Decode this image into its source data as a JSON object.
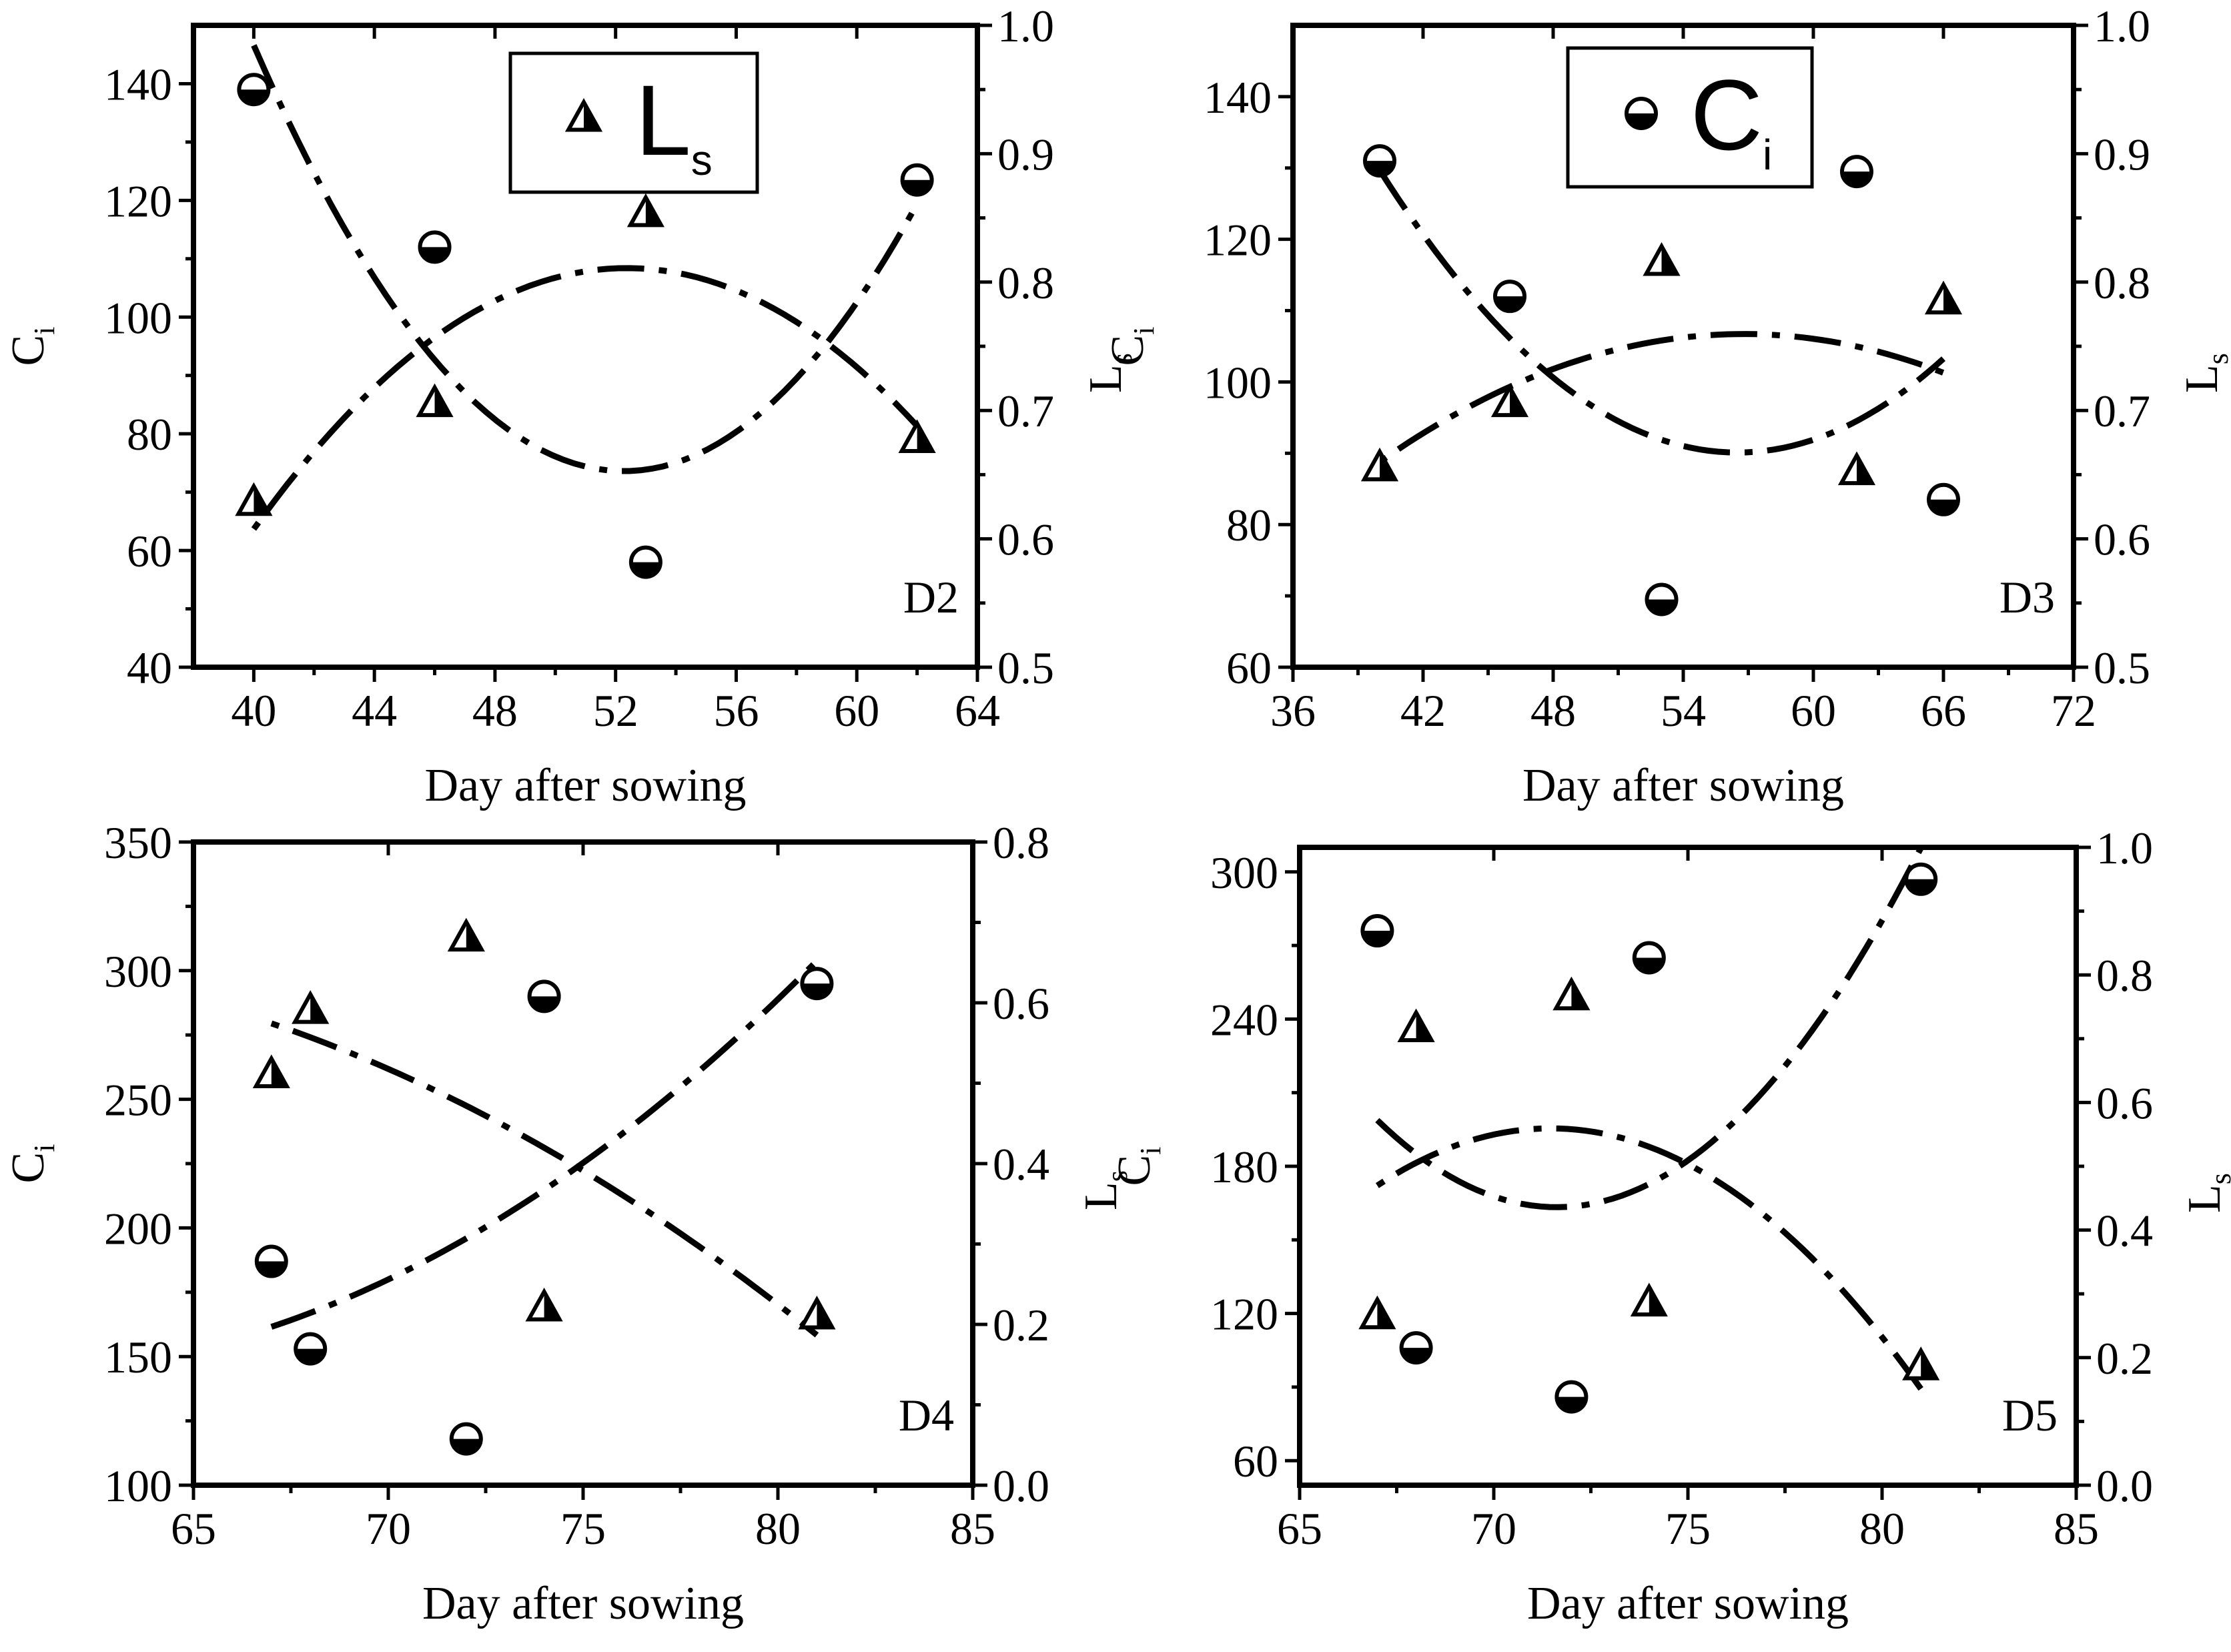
{
  "chart_data": [
    {
      "id": "D2",
      "type": "scatter",
      "panel_label": "D2",
      "xlabel": "Day after sowing",
      "ylabel_left": {
        "main": "C",
        "sub": "i"
      },
      "ylabel_right": {
        "main": "L",
        "sub": "s"
      },
      "xlim": [
        38,
        64
      ],
      "xticks": [
        40,
        44,
        48,
        52,
        56,
        60,
        64
      ],
      "ylim_left": [
        40,
        150
      ],
      "yticks_left": [
        40,
        60,
        80,
        100,
        120,
        140
      ],
      "ylim_right": [
        0.5,
        1.0
      ],
      "yticks_right": [
        "0.5",
        "0.6",
        "0.7",
        "0.8",
        "0.9",
        "1.0"
      ],
      "legend": {
        "position": "top-center",
        "marker": "triangle",
        "label_main": "L",
        "label_sub": "s"
      },
      "series": [
        {
          "name": "Ci",
          "axis": "left",
          "marker": "circle",
          "x": [
            40,
            46,
            53,
            62
          ],
          "y": [
            139,
            112,
            58,
            123.5
          ],
          "fit_x": [
            40,
            62
          ]
        },
        {
          "name": "Ls",
          "axis": "right",
          "marker": "triangle",
          "x": [
            40,
            46,
            53,
            62
          ],
          "y": [
            0.628,
            0.705,
            0.853,
            0.677
          ],
          "fit_x": [
            40,
            62
          ]
        }
      ]
    },
    {
      "id": "D3",
      "type": "scatter",
      "panel_label": "D3",
      "xlabel": "Day after sowing",
      "ylabel_left": {
        "main": "C",
        "sub": "i"
      },
      "ylabel_right": {
        "main": "L",
        "sub": "s"
      },
      "xlim": [
        36,
        72
      ],
      "xticks": [
        36,
        42,
        48,
        54,
        60,
        66,
        72
      ],
      "ylim_left": [
        60,
        150
      ],
      "yticks_left": [
        60,
        80,
        100,
        120,
        140
      ],
      "ylim_right": [
        0.5,
        1.0
      ],
      "yticks_right": [
        "0.5",
        "0.6",
        "0.7",
        "0.8",
        "0.9",
        "1.0"
      ],
      "legend": {
        "position": "top-center",
        "marker": "circle",
        "label_main": "C",
        "label_sub": "i"
      },
      "series": [
        {
          "name": "Ci",
          "axis": "left",
          "marker": "circle",
          "x": [
            40,
            46,
            53,
            62,
            66
          ],
          "y": [
            131,
            112,
            69.5,
            129.5,
            83.5
          ],
          "fit_x": [
            40,
            66
          ]
        },
        {
          "name": "Ls",
          "axis": "right",
          "marker": "triangle",
          "x": [
            40,
            46,
            53,
            62,
            66
          ],
          "y": [
            0.655,
            0.705,
            0.815,
            0.652,
            0.785
          ],
          "fit_x": [
            40,
            66
          ]
        }
      ]
    },
    {
      "id": "D4",
      "type": "scatter",
      "panel_label": "D4",
      "xlabel": "Day after sowing",
      "ylabel_left": {
        "main": "C",
        "sub": "i"
      },
      "ylabel_right": {
        "main": "L",
        "sub": "s"
      },
      "xlim": [
        65,
        85
      ],
      "xticks": [
        65,
        70,
        75,
        80,
        85
      ],
      "ylim_left": [
        100,
        350
      ],
      "yticks_left": [
        100,
        150,
        200,
        250,
        300,
        350
      ],
      "ylim_right": [
        0.0,
        0.8
      ],
      "yticks_right": [
        "0.0",
        "0.2",
        "0.4",
        "0.6",
        "0.8"
      ],
      "series": [
        {
          "name": "Ci",
          "axis": "left",
          "marker": "circle",
          "x": [
            67,
            68,
            72,
            74,
            81
          ],
          "y": [
            187,
            153,
            118,
            290,
            295
          ],
          "fit_x": [
            67,
            81
          ]
        },
        {
          "name": "Ls",
          "axis": "right",
          "marker": "triangle",
          "x": [
            67,
            68,
            72,
            74,
            81
          ],
          "y": [
            0.51,
            0.59,
            0.68,
            0.22,
            0.21
          ],
          "fit_x": [
            67,
            81
          ]
        }
      ]
    },
    {
      "id": "D5",
      "type": "scatter",
      "panel_label": "D5",
      "xlabel": "Day after sowing",
      "ylabel_left": {
        "main": "C",
        "sub": "i"
      },
      "ylabel_right": {
        "main": "L",
        "sub": "s"
      },
      "xlim": [
        65,
        85
      ],
      "xticks": [
        65,
        70,
        75,
        80,
        85
      ],
      "ylim_left": [
        50,
        310
      ],
      "yticks_left": [
        60,
        120,
        180,
        240,
        300
      ],
      "ylim_right": [
        0.0,
        1.0
      ],
      "yticks_right": [
        "0.0",
        "0.2",
        "0.4",
        "0.6",
        "0.8",
        "1.0"
      ],
      "series": [
        {
          "name": "Ci",
          "axis": "left",
          "marker": "circle",
          "x": [
            67,
            68,
            72,
            74,
            81
          ],
          "y": [
            276,
            106,
            86,
            265,
            297
          ],
          "fit_x": [
            67,
            81
          ]
        },
        {
          "name": "Ls",
          "axis": "right",
          "marker": "triangle",
          "x": [
            67,
            68,
            72,
            74,
            81
          ],
          "y": [
            0.265,
            0.715,
            0.765,
            0.285,
            0.185
          ],
          "fit_x": [
            67,
            81
          ]
        }
      ]
    }
  ]
}
